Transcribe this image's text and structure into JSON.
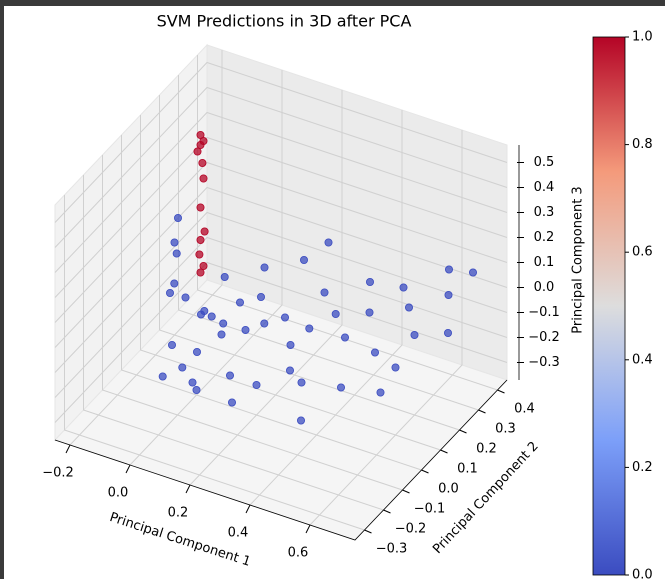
{
  "chart_data": {
    "type": "scatter3d",
    "title": "SVM Predictions in 3D after PCA",
    "xlabel": "Principal Component 1",
    "ylabel": "Principal Component 2",
    "zlabel": "Principal Component 3",
    "xlim": [
      -0.25,
      0.75
    ],
    "ylim": [
      -0.35,
      0.45
    ],
    "zlim": [
      -0.37,
      0.57
    ],
    "xticks": [
      {
        "value": -0.2,
        "label": "−0.2"
      },
      {
        "value": 0.0,
        "label": "0.0"
      },
      0.2,
      0.4,
      0.6
    ],
    "yticks": [
      {
        "value": -0.3,
        "label": "−0.3"
      },
      {
        "value": -0.2,
        "label": "−0.2"
      },
      {
        "value": -0.1,
        "label": "−0.1"
      },
      {
        "value": 0.0,
        "label": "0.0"
      },
      0.1,
      0.2,
      0.3,
      0.4
    ],
    "zticks": [
      {
        "value": -0.3,
        "label": "−0.3"
      },
      {
        "value": -0.2,
        "label": "−0.2"
      },
      {
        "value": -0.1,
        "label": "−0.1"
      },
      {
        "value": 0.0,
        "label": "0.0"
      },
      0.1,
      0.2,
      0.3,
      0.4,
      0.5
    ],
    "colormap": "coolwarm",
    "clim": [
      0,
      1
    ],
    "cticks": [
      {
        "value": 0,
        "label": "0.0"
      },
      0.2,
      0.4,
      0.6,
      0.8,
      {
        "value": 1,
        "label": "1.0"
      }
    ],
    "grid": true,
    "x": [
      -0.1,
      -0.05,
      0,
      -0.08,
      -0.12,
      0.02,
      -0.03,
      0.05,
      -0.15,
      -0.06,
      0.0,
      -0.1,
      0.08,
      0.1,
      0.12,
      -0.2,
      -0.22,
      -0.18,
      0.15,
      0.2,
      0.25,
      0.3,
      0.35,
      0.4,
      0.45,
      0.5,
      0.55,
      0.6,
      0.65,
      0.7,
      0.62,
      0.5,
      0.42,
      0.3,
      0.2,
      0.1,
      0.28,
      0.35,
      0.45,
      0.55,
      0.2,
      0.15,
      0.05,
      -0.05,
      0.38,
      0.6,
      0.68,
      0.25,
      -0.02,
      0.07,
      -0.05,
      -0.04,
      -0.06,
      -0.05,
      -0.03,
      -0.05,
      -0.04,
      -0.05,
      -0.06,
      -0.05,
      -0.04,
      -0.05
    ],
    "y": [
      0.1,
      0.12,
      0.08,
      0.15,
      0.05,
      0.1,
      0.05,
      0.15,
      0.12,
      0.02,
      0.0,
      -0.02,
      0.05,
      0.1,
      0.15,
      0.2,
      0.25,
      0.18,
      0.12,
      0.15,
      0.1,
      0.12,
      0.18,
      0.15,
      0.2,
      0.15,
      0.25,
      0.2,
      0.3,
      0.35,
      0.35,
      0.3,
      0.25,
      0.2,
      0.25,
      0.2,
      0.05,
      0.0,
      0.05,
      0.1,
      0.0,
      -0.05,
      -0.1,
      -0.05,
      -0.05,
      0.1,
      0.25,
      0.3,
      0.18,
      0.03,
      0.1,
      0.1,
      0.11,
      0.1,
      0.09,
      0.1,
      0.1,
      0.11,
      0.1,
      0.1,
      0.1,
      0.1
    ],
    "z": [
      -0.1,
      -0.15,
      -0.12,
      -0.2,
      -0.05,
      -0.2,
      -0.25,
      -0.1,
      -0.08,
      -0.3,
      -0.35,
      -0.32,
      -0.3,
      -0.15,
      -0.05,
      0.0,
      0.05,
      -0.02,
      -0.12,
      -0.1,
      -0.15,
      -0.08,
      -0.05,
      -0.1,
      -0.02,
      -0.12,
      0.0,
      -0.05,
      0.05,
      0.12,
      0.1,
      0.02,
      0.05,
      0.0,
      0.05,
      0.02,
      -0.2,
      -0.18,
      -0.2,
      -0.22,
      -0.25,
      -0.3,
      -0.22,
      -0.15,
      -0.28,
      -0.1,
      -0.05,
      0.1,
      -0.05,
      -0.08,
      0.02,
      0.05,
      0.08,
      0.15,
      0.2,
      0.28,
      0.4,
      0.45,
      0.5,
      0.53,
      0.55,
      0.57
    ],
    "c": [
      0,
      0,
      0,
      0,
      0,
      0,
      0,
      0,
      0,
      0,
      0,
      0,
      0,
      0,
      0,
      0,
      0,
      0,
      0,
      0,
      0,
      0,
      0,
      0,
      0,
      0,
      0,
      0,
      0,
      0,
      0,
      0,
      0,
      0,
      0,
      0,
      0,
      0,
      0,
      0,
      0,
      0,
      0,
      0,
      0,
      0,
      0,
      0,
      0,
      0,
      1,
      1,
      1,
      1,
      1,
      1,
      1,
      1,
      1,
      1,
      1,
      1
    ]
  }
}
